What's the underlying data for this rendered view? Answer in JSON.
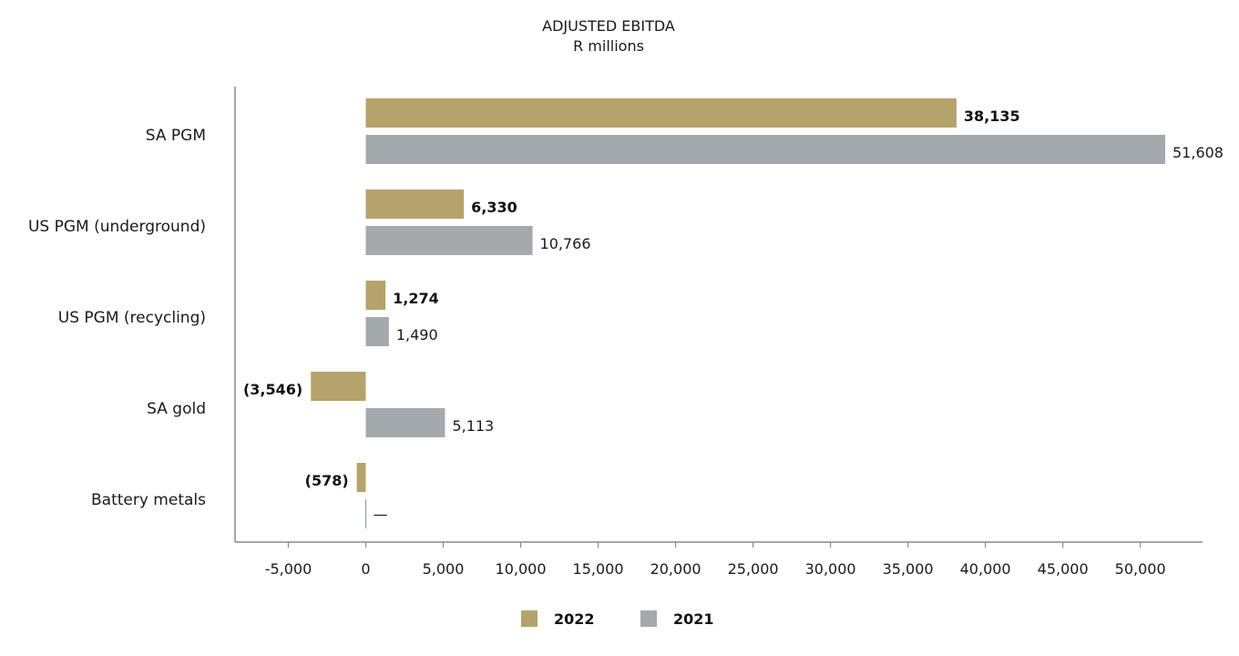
{
  "chart_data": {
    "type": "bar",
    "orientation": "horizontal",
    "title": "ADJUSTED EBITDA",
    "subtitle": "R millions",
    "categories": [
      "SA PGM",
      "US PGM (underground)",
      "US PGM (recycling)",
      "SA gold",
      "Battery metals"
    ],
    "series": [
      {
        "name": "2022",
        "color": "#b5a36b",
        "values": [
          38135,
          6330,
          1274,
          -3546,
          -578
        ],
        "labels": [
          "38,135",
          "6,330",
          "1,274",
          "(3,546)",
          "(578)"
        ]
      },
      {
        "name": "2021",
        "color": "#a4a9ad",
        "values": [
          51608,
          10766,
          1490,
          5113,
          0
        ],
        "labels": [
          "51,608",
          "10,766",
          "1,490",
          "5,113",
          "—"
        ]
      }
    ],
    "xlim": [
      -8400,
      54200
    ],
    "xticks": [
      -5000,
      0,
      5000,
      10000,
      15000,
      20000,
      25000,
      30000,
      35000,
      40000,
      45000,
      50000
    ],
    "xtick_labels": [
      "-5,000",
      "0",
      "5,000",
      "10,000",
      "15,000",
      "20,000",
      "25,000",
      "30,000",
      "35,000",
      "40,000",
      "45,000",
      "50,000"
    ],
    "legend": [
      "2022",
      "2021"
    ],
    "legend_position": "bottom-center",
    "grid": false
  }
}
